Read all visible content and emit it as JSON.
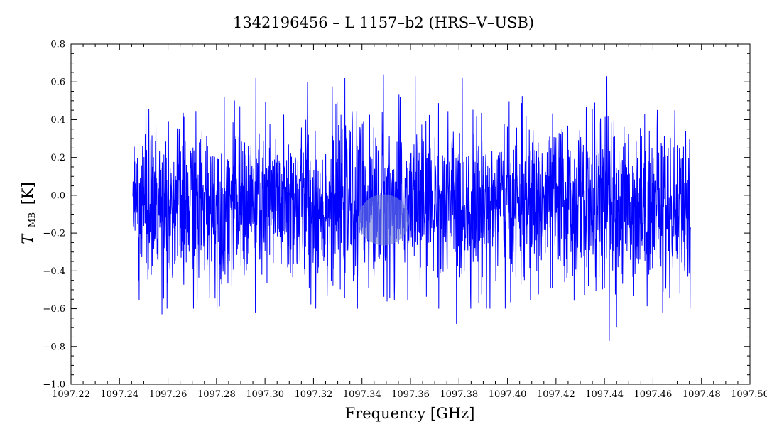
{
  "chart_data": {
    "type": "line",
    "title": "1342196456 – L 1157–b2 (HRS–V–USB)",
    "xlabel": "Frequency [GHz]",
    "ylabel_main": "T",
    "ylabel_sub": "MB",
    "ylabel_unit": "[K]",
    "xlim": [
      1097.22,
      1097.5
    ],
    "ylim": [
      -1.0,
      0.8
    ],
    "x_ticks": [
      1097.22,
      1097.24,
      1097.26,
      1097.28,
      1097.3,
      1097.32,
      1097.34,
      1097.36,
      1097.38,
      1097.4,
      1097.42,
      1097.44,
      1097.46,
      1097.48,
      1097.5
    ],
    "x_tick_labels": [
      "1097.22",
      "1097.24",
      "1097.26",
      "1097.28",
      "1097.30",
      "1097.32",
      "1097.34",
      "1097.36",
      "1097.38",
      "1097.40",
      "1097.42",
      "1097.44",
      "1097.46",
      "1097.48",
      "1097.50"
    ],
    "y_ticks": [
      -1.0,
      -0.8,
      -0.6,
      -0.4,
      -0.2,
      0.0,
      0.2,
      0.4,
      0.6,
      0.8
    ],
    "y_tick_labels": [
      "−1.0",
      "−0.8",
      "−0.6",
      "−0.4",
      "−0.2",
      "0.0",
      "0.2",
      "0.4",
      "0.6",
      "0.8"
    ],
    "grid": false,
    "series": [
      {
        "color": "#0000ff",
        "x_start": 1097.2455,
        "x_end": 1097.4755,
        "noise_sigma": 0.21,
        "mean": -0.05,
        "notable_points": [
          {
            "x": 1097.2478,
            "y": 0.63
          },
          {
            "x": 1097.2478,
            "y": -0.45
          },
          {
            "x": 1097.2575,
            "y": -0.63
          },
          {
            "x": 1097.272,
            "y": -0.55
          },
          {
            "x": 1097.296,
            "y": -0.62
          },
          {
            "x": 1097.3175,
            "y": 0.6
          },
          {
            "x": 1097.3488,
            "y": 0.64
          },
          {
            "x": 1097.362,
            "y": 0.63
          },
          {
            "x": 1097.379,
            "y": -0.68
          },
          {
            "x": 1097.441,
            "y": 0.63
          },
          {
            "x": 1097.442,
            "y": -0.77
          },
          {
            "x": 1097.445,
            "y": -0.7
          },
          {
            "x": 1097.464,
            "y": -0.62
          },
          {
            "x": 1097.469,
            "y": 0.45
          }
        ]
      }
    ],
    "highlight_marker": {
      "x": 1097.349,
      "y": -0.13,
      "color": "#6f7fd6"
    }
  }
}
